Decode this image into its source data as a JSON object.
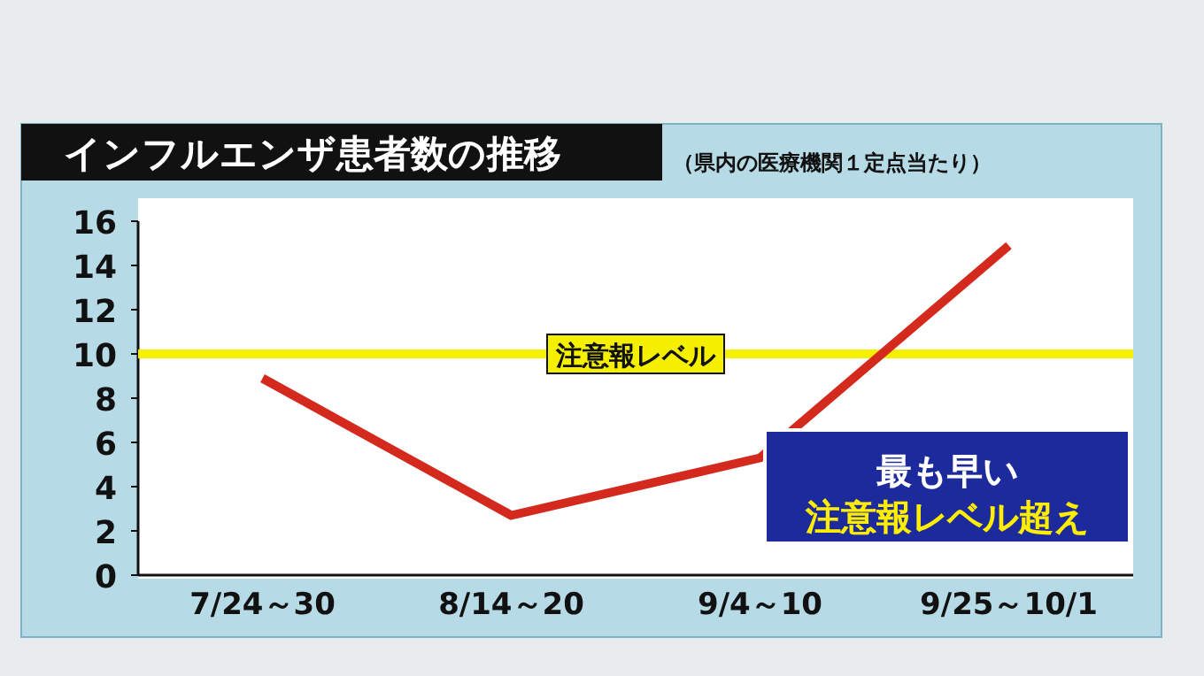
{
  "chart_data": {
    "type": "line",
    "title": "インフルエンザ患者数の推移",
    "subtitle": "（県内の医療機関１定点当たり）",
    "categories": [
      "7/24～30",
      "8/14～20",
      "9/4～10",
      "9/25～10/1"
    ],
    "series": [
      {
        "color": "#d42a1e",
        "values": [
          8.9,
          2.7,
          5.3,
          14.9
        ]
      }
    ],
    "ylim": [
      0,
      16
    ],
    "yticks": [
      0,
      2,
      4,
      6,
      8,
      {
        "value": 10,
        "label": "10"
      },
      12,
      14,
      16
    ],
    "ref_lines": [
      {
        "axis": "y",
        "value": 10,
        "label": "注意報レベル",
        "color": "#f5f000"
      }
    ],
    "annotations": [
      "最も早い",
      "注意報レベル超え"
    ],
    "marker": "none",
    "line_style": "solid"
  }
}
